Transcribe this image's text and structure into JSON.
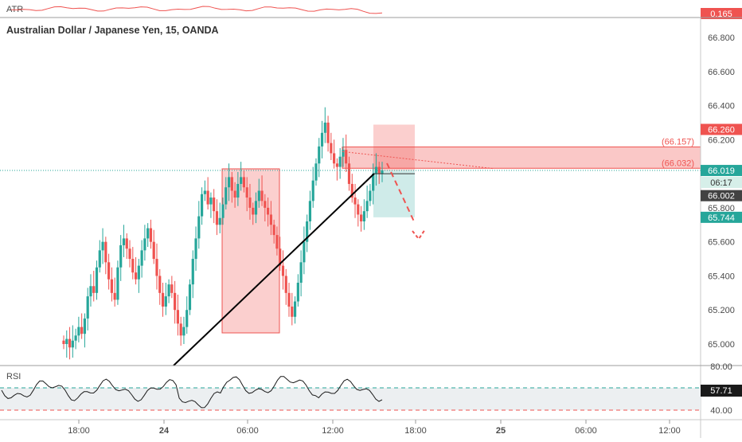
{
  "colors": {
    "up": "#26a69a",
    "down": "#ef5350",
    "grid": "#ffffff",
    "text": "#4a4a4a",
    "axis_line": "#c8c8c8",
    "atr_line": "#ef5350",
    "rsi_line": "#1a1a1a",
    "rsi_band": "#eceff1",
    "zone_red": "#ef5350",
    "zone_green": "#26a69a"
  },
  "atr": {
    "label": "ATR",
    "value": "0.165"
  },
  "main": {
    "title": "Australian Dollar / Japanese Yen, 15, OANDA",
    "y_labels": [
      "66.800",
      "66.600",
      "66.400",
      "66.200",
      "65.800",
      "65.600",
      "65.400",
      "65.200",
      "65.000"
    ],
    "y_values": [
      66.8,
      66.6,
      66.4,
      66.2,
      65.8,
      65.6,
      65.4,
      65.2,
      65.0
    ],
    "badges": {
      "stop": "66.260",
      "last": "66.019",
      "countdown": "06:17",
      "bid": "66.002",
      "target": "65.744"
    },
    "zone_labels": {
      "upper": "(66.157)",
      "lower": "(66.032)"
    }
  },
  "x_axis": {
    "labels": [
      "18:00",
      "24",
      "06:00",
      "12:00",
      "18:00",
      "25",
      "06:00",
      "12:00"
    ]
  },
  "rsi": {
    "label": "RSI",
    "value": "57.71",
    "levels": [
      "80.00",
      "40.00"
    ]
  },
  "chart_data": {
    "type": "candlestick",
    "title": "Australian Dollar / Japanese Yen, 15, OANDA",
    "interval": "15",
    "ylim": [
      64.95,
      66.9
    ],
    "x_ticks": [
      "18:00",
      "24",
      "06:00",
      "12:00",
      "18:00",
      "25",
      "06:00",
      "12:00"
    ],
    "start_seed": 65.02,
    "closes": [
      65.0,
      65.03,
      64.98,
      65.02,
      65.05,
      65.1,
      65.06,
      65.15,
      65.28,
      65.34,
      65.3,
      65.45,
      65.55,
      65.6,
      65.48,
      65.38,
      65.3,
      65.26,
      65.45,
      65.58,
      65.62,
      65.56,
      65.5,
      65.42,
      65.38,
      65.46,
      65.55,
      65.62,
      65.68,
      65.6,
      65.5,
      65.4,
      65.3,
      65.22,
      65.28,
      65.35,
      65.3,
      65.2,
      65.12,
      65.05,
      65.1,
      65.2,
      65.35,
      65.5,
      65.62,
      65.75,
      65.88,
      65.9,
      65.82,
      65.86,
      65.78,
      65.7,
      65.74,
      65.82,
      65.92,
      65.98,
      65.9,
      65.86,
      65.94,
      65.98,
      65.92,
      65.86,
      65.8,
      65.76,
      65.84,
      65.9,
      65.84,
      65.8,
      65.76,
      65.7,
      65.64,
      65.56,
      65.46,
      65.4,
      65.3,
      65.22,
      65.16,
      65.25,
      65.36,
      65.48,
      65.6,
      65.72,
      65.84,
      65.96,
      66.06,
      66.16,
      66.24,
      66.3,
      66.18,
      66.12,
      66.06,
      66.04,
      66.1,
      66.14,
      66.06,
      65.94,
      65.86,
      65.82,
      65.76,
      65.72,
      65.78,
      65.84,
      65.9,
      66.0,
      66.04,
      66.0,
      66.02
    ],
    "trendline": {
      "from": [
        64.98,
        "start"
      ],
      "to": [
        66.0,
        "end"
      ]
    },
    "zones": [
      {
        "label": "(66.157)",
        "from": 66.157,
        "to": 66.032
      }
    ],
    "position": {
      "entry": 66.019,
      "stop": 66.26,
      "target": 65.744
    },
    "atr_value": 0.165,
    "rsi": {
      "value": 57.71,
      "levels": [
        80,
        40
      ]
    }
  }
}
